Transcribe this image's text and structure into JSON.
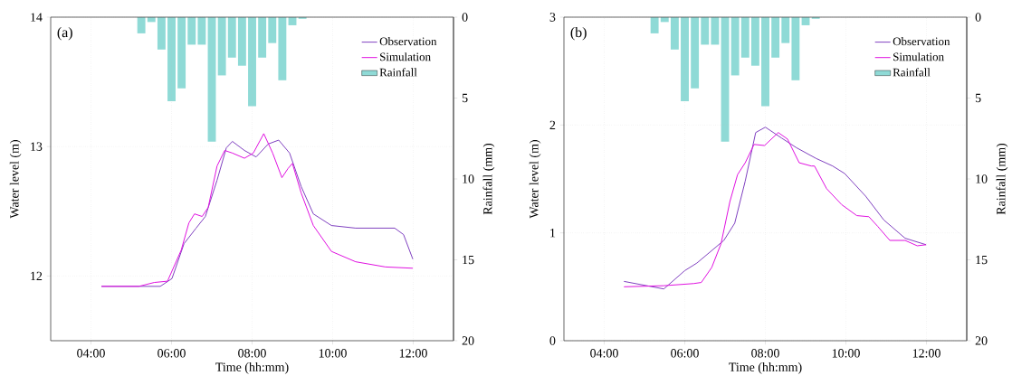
{
  "chart_data": [
    {
      "type": "line",
      "annotations": [
        "(a)"
      ],
      "xlabel": "Time (hh:mm)",
      "ylabel": "Water level (m)",
      "y2label": "Rainfall (mm)",
      "xlim": [
        3,
        13
      ],
      "xticks": [
        {
          "value": 4,
          "label": "04:00"
        },
        {
          "value": 6,
          "label": "06:00"
        },
        {
          "value": 8,
          "label": "08:00"
        },
        {
          "value": 10,
          "label": "10:00"
        },
        {
          "value": 12,
          "label": "12:00"
        }
      ],
      "ylim": [
        11.5,
        14
      ],
      "yticks": [
        12,
        13,
        14
      ],
      "y2lim": [
        20,
        0
      ],
      "y2ticks": [
        0,
        5,
        10,
        15,
        20
      ],
      "grid": true,
      "legend": "top right",
      "series": [
        {
          "name": "Observation",
          "color": "#8040c0",
          "x": [
            4.26,
            5.72,
            6.01,
            6.31,
            6.61,
            6.84,
            7.13,
            7.36,
            7.51,
            7.81,
            8.1,
            8.4,
            8.66,
            8.93,
            9.22,
            9.52,
            9.97,
            10.57,
            11.54,
            11.76,
            11.99
          ],
          "values": [
            11.92,
            11.92,
            11.98,
            12.25,
            12.37,
            12.46,
            12.74,
            12.99,
            13.04,
            12.97,
            12.92,
            13.02,
            13.05,
            12.95,
            12.69,
            12.48,
            12.39,
            12.37,
            12.37,
            12.32,
            12.13
          ]
        },
        {
          "name": "Simulation",
          "color": "#e010e0",
          "x": [
            4.26,
            5.19,
            5.57,
            5.9,
            6.24,
            6.43,
            6.57,
            6.76,
            6.91,
            7.13,
            7.32,
            7.51,
            7.81,
            8.03,
            8.29,
            8.51,
            8.74,
            8.89,
            9.0,
            9.22,
            9.52,
            9.97,
            10.57,
            11.31,
            11.99
          ],
          "values": [
            11.92,
            11.92,
            11.95,
            11.96,
            12.2,
            12.41,
            12.48,
            12.46,
            12.53,
            12.85,
            12.97,
            12.95,
            12.91,
            12.95,
            13.1,
            12.95,
            12.76,
            12.83,
            12.87,
            12.64,
            12.39,
            12.19,
            12.11,
            12.07,
            12.06
          ]
        },
        {
          "name": "Rainfall",
          "type": "bar",
          "axis": "y2",
          "color": "#8fdad6",
          "x": [
            5.25,
            5.5,
            5.75,
            6.0,
            6.25,
            6.5,
            6.75,
            7.0,
            7.25,
            7.5,
            7.75,
            8.0,
            8.25,
            8.5,
            8.75,
            9.0,
            9.25
          ],
          "values": [
            1.0,
            0.3,
            2.0,
            5.2,
            4.4,
            1.7,
            1.7,
            7.7,
            3.6,
            2.5,
            3.0,
            5.5,
            2.5,
            1.6,
            3.9,
            0.5,
            0.1
          ]
        }
      ]
    },
    {
      "type": "line",
      "annotations": [
        "(b)"
      ],
      "xlabel": "Time (hh:mm)",
      "ylabel": "Water level (m)",
      "y2label": "Rainfall (mm)",
      "xlim": [
        3,
        13
      ],
      "xticks": [
        {
          "value": 4,
          "label": "04:00"
        },
        {
          "value": 6,
          "label": "06:00"
        },
        {
          "value": 8,
          "label": "08:00"
        },
        {
          "value": 10,
          "label": "10:00"
        },
        {
          "value": 12,
          "label": "12:00"
        }
      ],
      "ylim": [
        0,
        3
      ],
      "yticks": [
        0,
        1,
        2,
        3
      ],
      "y2lim": [
        20,
        0
      ],
      "y2ticks": [
        0,
        5,
        10,
        15,
        20
      ],
      "grid": true,
      "legend": "top right",
      "series": [
        {
          "name": "Observation",
          "color": "#8040c0",
          "x": [
            4.49,
            5.48,
            6.0,
            6.3,
            6.97,
            7.24,
            7.5,
            7.76,
            8.0,
            8.4,
            8.77,
            9.26,
            9.67,
            9.97,
            10.49,
            10.94,
            11.47,
            11.99
          ],
          "values": [
            0.55,
            0.48,
            0.65,
            0.72,
            0.93,
            1.09,
            1.48,
            1.93,
            1.98,
            1.88,
            1.79,
            1.69,
            1.62,
            1.55,
            1.34,
            1.12,
            0.95,
            0.89
          ]
        },
        {
          "name": "Simulation",
          "color": "#e010e0",
          "x": [
            4.49,
            5.48,
            6.22,
            6.41,
            6.67,
            6.9,
            7.12,
            7.31,
            7.5,
            7.72,
            7.98,
            8.32,
            8.55,
            8.84,
            9.14,
            9.22,
            9.52,
            9.9,
            10.27,
            10.57,
            10.79,
            11.09,
            11.47,
            11.77,
            11.99
          ],
          "values": [
            0.5,
            0.51,
            0.53,
            0.54,
            0.68,
            0.9,
            1.29,
            1.54,
            1.65,
            1.82,
            1.81,
            1.93,
            1.87,
            1.65,
            1.62,
            1.62,
            1.41,
            1.26,
            1.16,
            1.15,
            1.06,
            0.93,
            0.93,
            0.88,
            0.89
          ]
        },
        {
          "name": "Rainfall",
          "type": "bar",
          "axis": "y2",
          "color": "#8fdad6",
          "x": [
            5.25,
            5.5,
            5.75,
            6.0,
            6.25,
            6.5,
            6.75,
            7.0,
            7.25,
            7.5,
            7.75,
            8.0,
            8.25,
            8.5,
            8.75,
            9.0,
            9.25
          ],
          "values": [
            1.0,
            0.3,
            2.0,
            5.2,
            4.4,
            1.7,
            1.7,
            7.7,
            3.6,
            2.5,
            3.0,
            5.5,
            2.5,
            1.6,
            3.9,
            0.5,
            0.1
          ]
        }
      ]
    }
  ]
}
